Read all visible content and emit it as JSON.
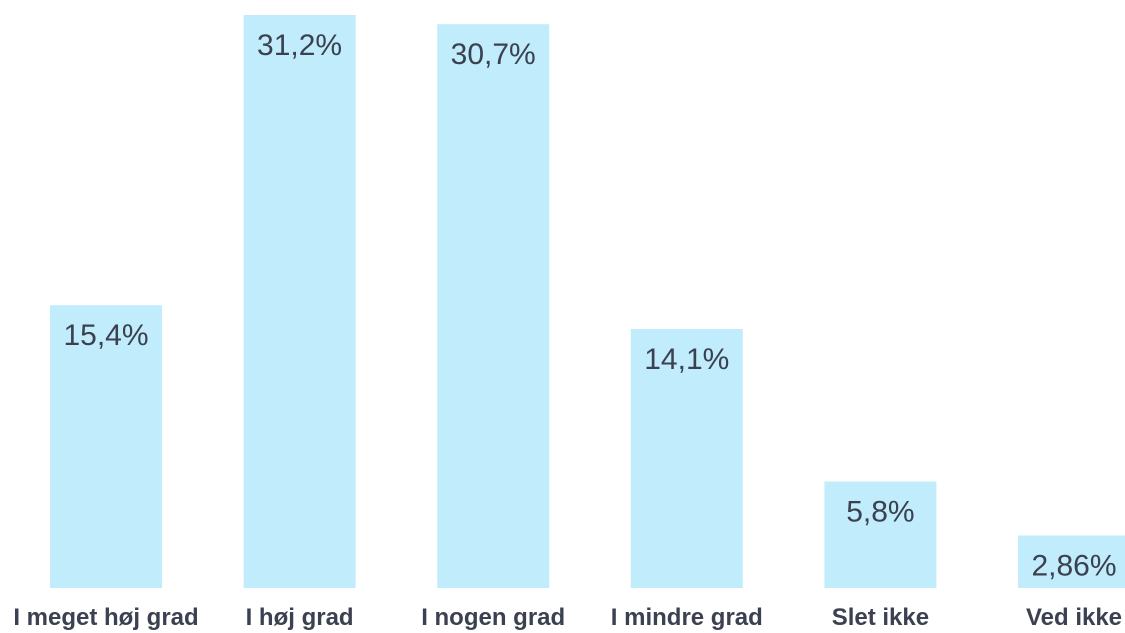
{
  "chart_data": {
    "type": "bar",
    "categories": [
      "I meget høj grad",
      "I høj grad",
      "I nogen grad",
      "I mindre grad",
      "Slet ikke",
      "Ved ikke"
    ],
    "values": [
      15.4,
      31.2,
      30.7,
      14.1,
      5.8,
      2.86
    ],
    "value_labels": [
      "15,4%",
      "31,2%",
      "30,7%",
      "14,1%",
      "5,8%",
      "2,86%"
    ],
    "title": "",
    "xlabel": "",
    "ylabel": "",
    "ylim": [
      0,
      31.2
    ],
    "grid": false,
    "legend": "none",
    "colors": {
      "bar": "#c1ecfb",
      "text": "#3b4150"
    }
  }
}
